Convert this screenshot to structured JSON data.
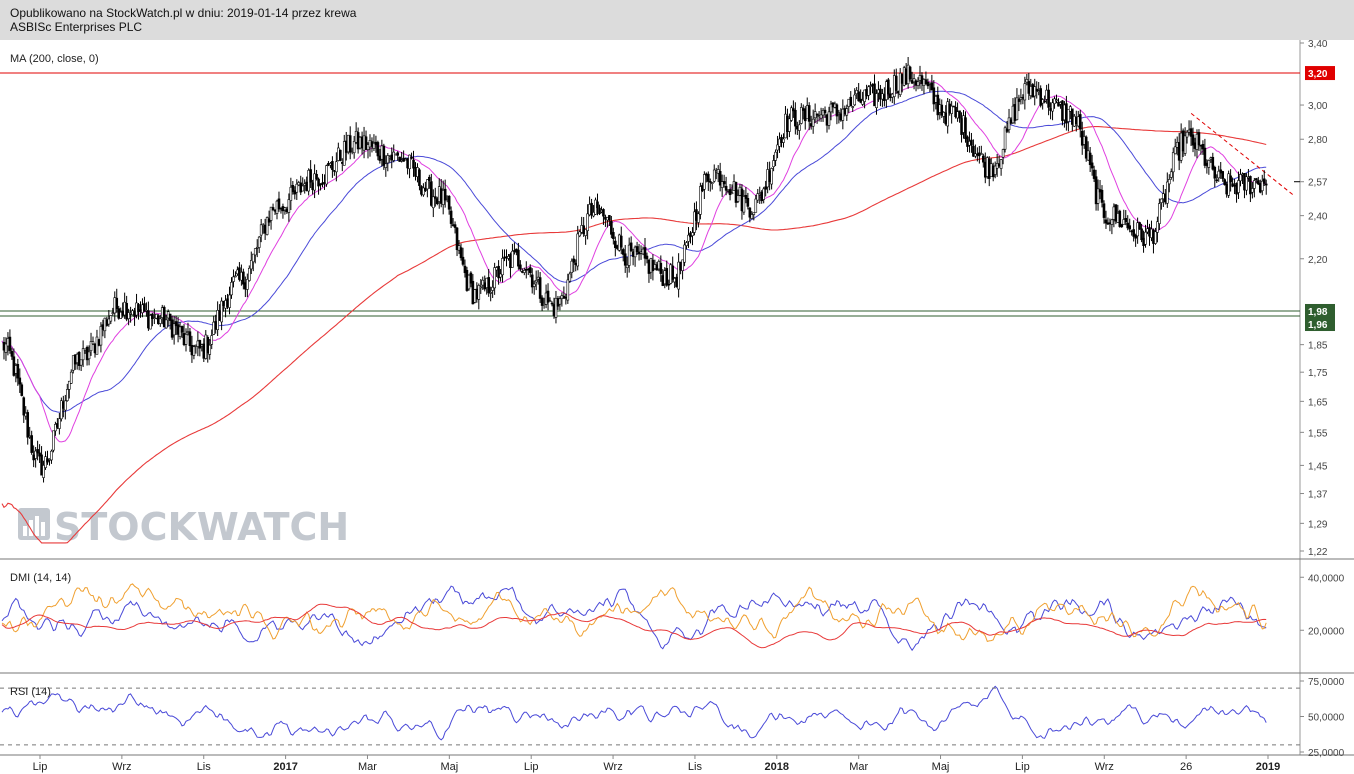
{
  "header": {
    "line1": "Opublikowano na StockWatch.pl w dniu: 2019-01-14 przez krewa",
    "line2": "ASBISc Enterprises PLC"
  },
  "watermark": "STOCKWATCH",
  "chart_data": {
    "type": "candlestick",
    "title": "ASBISc Enterprises PLC",
    "x_ticks": [
      {
        "label": "Lip",
        "bold": false
      },
      {
        "label": "Wrz",
        "bold": false
      },
      {
        "label": "Lis",
        "bold": false
      },
      {
        "label": "2017",
        "bold": true
      },
      {
        "label": "Mar",
        "bold": false
      },
      {
        "label": "Maj",
        "bold": false
      },
      {
        "label": "Lip",
        "bold": false
      },
      {
        "label": "Wrz",
        "bold": false
      },
      {
        "label": "Lis",
        "bold": false
      },
      {
        "label": "2018",
        "bold": true
      },
      {
        "label": "Mar",
        "bold": false
      },
      {
        "label": "Maj",
        "bold": false
      },
      {
        "label": "Lip",
        "bold": false
      },
      {
        "label": "Wrz",
        "bold": false
      },
      {
        "label": "26",
        "bold": false
      },
      {
        "label": "2019",
        "bold": true
      }
    ],
    "price_panel": {
      "indicator_label": "MA (200, close, 0)",
      "y_ticks": [
        "3,40",
        "3,00",
        "2,80",
        "2,57",
        "2,40",
        "2,20",
        "1,85",
        "1,75",
        "1,65",
        "1,55",
        "1,45",
        "1,37",
        "1,29",
        "1,22"
      ],
      "ylim": [
        1.22,
        3.4
      ],
      "log_scale": true,
      "price_path": [
        {
          "date": "2016-05",
          "value": 1.85
        },
        {
          "date": "2016-06",
          "value": 1.45
        },
        {
          "date": "2016-07",
          "value": 1.8
        },
        {
          "date": "2016-08",
          "value": 2.0
        },
        {
          "date": "2016-09",
          "value": 1.95
        },
        {
          "date": "2016-10",
          "value": 1.83
        },
        {
          "date": "2016-11",
          "value": 2.1
        },
        {
          "date": "2016-12",
          "value": 2.45
        },
        {
          "date": "2017-01",
          "value": 2.6
        },
        {
          "date": "2017-02",
          "value": 2.78
        },
        {
          "date": "2017-03",
          "value": 2.7
        },
        {
          "date": "2017-04",
          "value": 2.5
        },
        {
          "date": "2017-05",
          "value": 2.05
        },
        {
          "date": "2017-06",
          "value": 2.2
        },
        {
          "date": "2017-07",
          "value": 2.0
        },
        {
          "date": "2017-08",
          "value": 2.42
        },
        {
          "date": "2017-09",
          "value": 2.2
        },
        {
          "date": "2017-10",
          "value": 2.12
        },
        {
          "date": "2017-11",
          "value": 2.62
        },
        {
          "date": "2017-12",
          "value": 2.45
        },
        {
          "date": "2018-01",
          "value": 2.92
        },
        {
          "date": "2018-02",
          "value": 2.95
        },
        {
          "date": "2018-03",
          "value": 3.05
        },
        {
          "date": "2018-04",
          "value": 3.18
        },
        {
          "date": "2018-05",
          "value": 2.95
        },
        {
          "date": "2018-06",
          "value": 2.65
        },
        {
          "date": "2018-07",
          "value": 3.1
        },
        {
          "date": "2018-08",
          "value": 2.95
        },
        {
          "date": "2018-09",
          "value": 2.4
        },
        {
          "date": "2018-10",
          "value": 2.3
        },
        {
          "date": "2018-11",
          "value": 2.8
        },
        {
          "date": "2018-12",
          "value": 2.55
        },
        {
          "date": "2019-01",
          "value": 2.57
        }
      ],
      "series": [
        {
          "name": "MA (200, close, 0)",
          "color": "#e83a3a"
        },
        {
          "color": "#4a4ad8"
        },
        {
          "color": "#e040e0"
        }
      ],
      "horizontal_levels": [
        {
          "value": "3,20",
          "color": "#e00000"
        },
        {
          "value": "1,98",
          "color": "#2f5e2f"
        },
        {
          "value": "1,96",
          "color": "#2f5e2f"
        }
      ],
      "last_price_label": "2,57",
      "trendline": {
        "style": "dashed",
        "color": "#e00000",
        "from": {
          "date": "2018-11",
          "value": 2.95
        },
        "to": {
          "date": "2019-01",
          "value": 2.55
        }
      }
    },
    "dmi_panel": {
      "label": "DMI (14, 14)",
      "y_ticks": [
        "40,0000",
        "20,0000"
      ],
      "series": [
        {
          "color": "#4a4ad8"
        },
        {
          "color": "#f0a030"
        },
        {
          "color": "#e83a3a"
        }
      ]
    },
    "rsi_panel": {
      "label": "RSI (14)",
      "y_ticks": [
        "75,0000",
        "50,0000",
        "25,0000"
      ],
      "guide_levels": [
        70,
        30
      ],
      "series": [
        {
          "color": "#4a4ad8"
        }
      ]
    }
  }
}
